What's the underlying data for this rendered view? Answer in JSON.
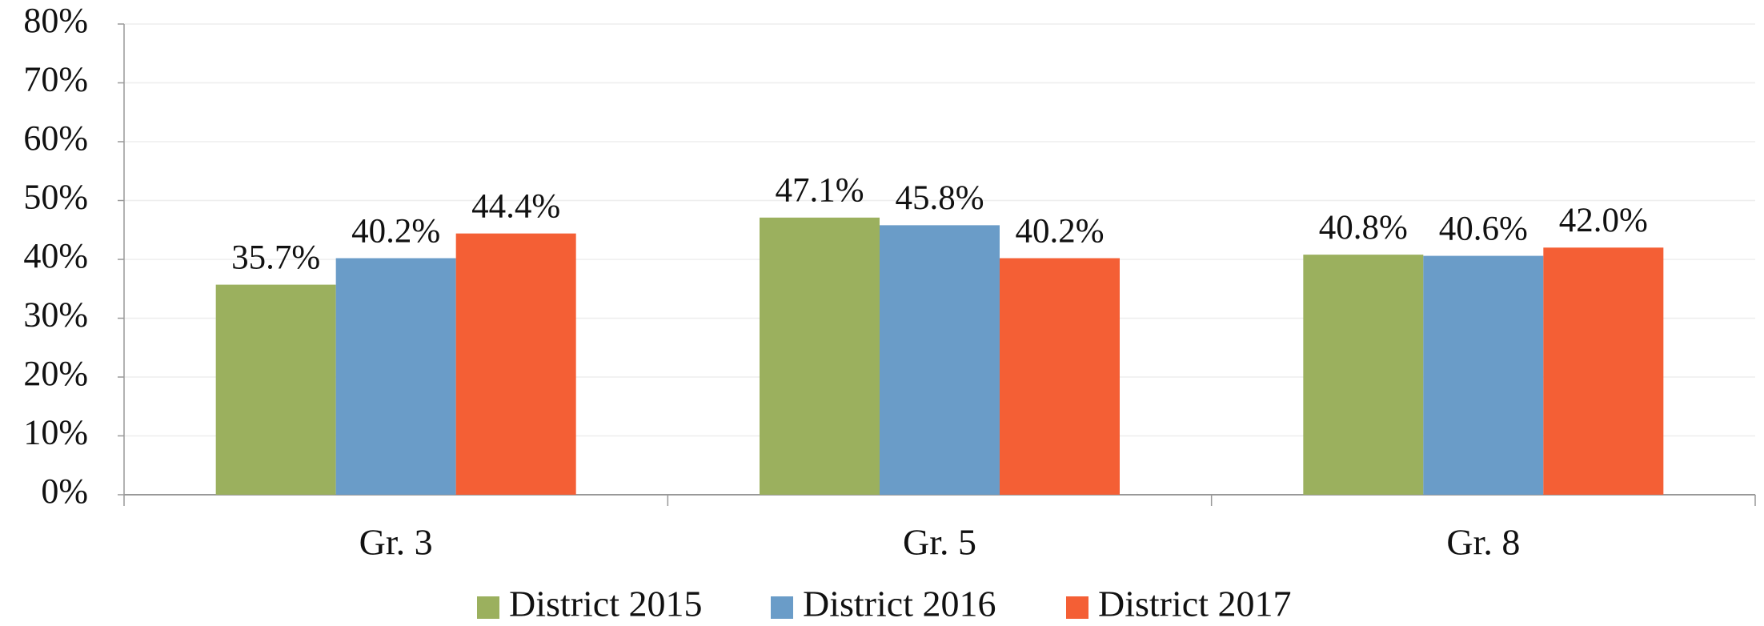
{
  "chart_data": {
    "type": "bar",
    "categories": [
      "Gr. 3",
      "Gr. 5",
      "Gr. 8"
    ],
    "series": [
      {
        "name": "District 2015",
        "color": "#9bb05e",
        "values": [
          35.7,
          47.1,
          40.8
        ],
        "value_labels": [
          "35.7%",
          "47.1%",
          "40.8%"
        ]
      },
      {
        "name": "District 2016",
        "color": "#6a9cc8",
        "values": [
          40.2,
          45.8,
          40.6
        ],
        "value_labels": [
          "40.2%",
          "45.8%",
          "40.6%"
        ]
      },
      {
        "name": "District 2017",
        "color": "#f45f35",
        "values": [
          44.4,
          40.2,
          42.0
        ],
        "value_labels": [
          "44.4%",
          "40.2%",
          "42.0%"
        ]
      }
    ],
    "ylim": [
      0,
      80
    ],
    "yticks": [
      {
        "value": 0,
        "label": "0%"
      },
      {
        "value": 10,
        "label": "10%"
      },
      {
        "value": 20,
        "label": "20%"
      },
      {
        "value": 30,
        "label": "30%"
      },
      {
        "value": 40,
        "label": "40%"
      },
      {
        "value": 50,
        "label": "50%"
      },
      {
        "value": 60,
        "label": "60%"
      },
      {
        "value": 70,
        "label": "70%"
      },
      {
        "value": 80,
        "label": "80%"
      }
    ],
    "grid": true,
    "legend": "bottom"
  }
}
